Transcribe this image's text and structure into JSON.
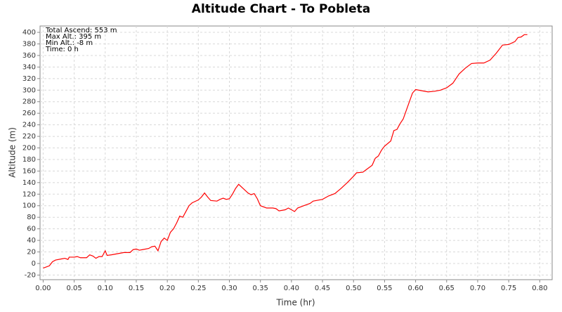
{
  "chart_data": {
    "type": "line",
    "title": "Altitude Chart - To Pobleta",
    "x_label": "Time (hr)",
    "y_label": "Altitude (m)",
    "annotations": [
      "Total Ascend: 553 m",
      "Max Alt.: 395 m",
      "Min Alt.: -8 m",
      "Time: 0 h"
    ],
    "color": "#ff0000",
    "grid": true,
    "xlim": [
      -0.005,
      0.82
    ],
    "ylim": [
      -28,
      411
    ],
    "xticks": [
      {
        "value": 0,
        "label": "0.00"
      },
      {
        "value": 0.05,
        "label": "0.05"
      },
      {
        "value": 0.1,
        "label": "0.10"
      },
      {
        "value": 0.15,
        "label": "0.15"
      },
      {
        "value": 0.2,
        "label": "0.20"
      },
      {
        "value": 0.25,
        "label": "0.25"
      },
      {
        "value": 0.3,
        "label": "0.30"
      },
      {
        "value": 0.35,
        "label": "0.35"
      },
      {
        "value": 0.4,
        "label": "0.40"
      },
      {
        "value": 0.45,
        "label": "0.45"
      },
      {
        "value": 0.5,
        "label": "0.50"
      },
      {
        "value": 0.55,
        "label": "0.55"
      },
      {
        "value": 0.6,
        "label": "0.60"
      },
      {
        "value": 0.65,
        "label": "0.65"
      },
      {
        "value": 0.7,
        "label": "0.70"
      },
      {
        "value": 0.75,
        "label": "0.75"
      },
      {
        "value": 0.8,
        "label": "0.80"
      }
    ],
    "yticks": [
      -20,
      0,
      20,
      40,
      60,
      80,
      100,
      120,
      140,
      160,
      180,
      200,
      220,
      240,
      260,
      280,
      300,
      320,
      340,
      360,
      380,
      400
    ],
    "x": [
      0,
      0.01,
      0.015,
      0.02,
      0.03,
      0.035,
      0.04,
      0.042,
      0.05,
      0.055,
      0.06,
      0.07,
      0.075,
      0.08,
      0.085,
      0.09,
      0.095,
      0.1,
      0.103,
      0.11,
      0.12,
      0.13,
      0.14,
      0.145,
      0.15,
      0.155,
      0.16,
      0.17,
      0.175,
      0.18,
      0.185,
      0.19,
      0.195,
      0.2,
      0.205,
      0.21,
      0.215,
      0.22,
      0.225,
      0.23,
      0.235,
      0.24,
      0.25,
      0.255,
      0.26,
      0.265,
      0.27,
      0.28,
      0.285,
      0.29,
      0.295,
      0.3,
      0.305,
      0.31,
      0.315,
      0.32,
      0.33,
      0.335,
      0.34,
      0.345,
      0.35,
      0.36,
      0.37,
      0.375,
      0.38,
      0.39,
      0.395,
      0.4,
      0.405,
      0.41,
      0.42,
      0.43,
      0.435,
      0.45,
      0.46,
      0.47,
      0.48,
      0.49,
      0.5,
      0.505,
      0.515,
      0.52,
      0.53,
      0.535,
      0.54,
      0.545,
      0.55,
      0.56,
      0.565,
      0.57,
      0.575,
      0.58,
      0.585,
      0.59,
      0.595,
      0.6,
      0.61,
      0.62,
      0.63,
      0.64,
      0.65,
      0.66,
      0.67,
      0.68,
      0.69,
      0.7,
      0.71,
      0.72,
      0.73,
      0.74,
      0.75,
      0.76,
      0.765,
      0.77,
      0.775,
      0.78
    ],
    "values": [
      -8,
      -4,
      3,
      6,
      8,
      9,
      7,
      11,
      11,
      12,
      10,
      10,
      15,
      13,
      9,
      12,
      12,
      22,
      14,
      15,
      17,
      19,
      19,
      24,
      25,
      23,
      24,
      26,
      29,
      30,
      22,
      38,
      44,
      40,
      54,
      60,
      70,
      82,
      80,
      90,
      100,
      105,
      110,
      115,
      122,
      115,
      109,
      108,
      111,
      113,
      111,
      112,
      120,
      130,
      137,
      132,
      122,
      119,
      121,
      112,
      100,
      96,
      96,
      95,
      91,
      93,
      96,
      93,
      90,
      96,
      100,
      104,
      108,
      111,
      117,
      121,
      130,
      140,
      151,
      157,
      158,
      162,
      170,
      182,
      186,
      196,
      203,
      212,
      230,
      232,
      242,
      250,
      265,
      280,
      295,
      301,
      299,
      297,
      298,
      300,
      304,
      312,
      328,
      338,
      346,
      347,
      347,
      352,
      364,
      378,
      379,
      384,
      391,
      392,
      396,
      396
    ]
  }
}
